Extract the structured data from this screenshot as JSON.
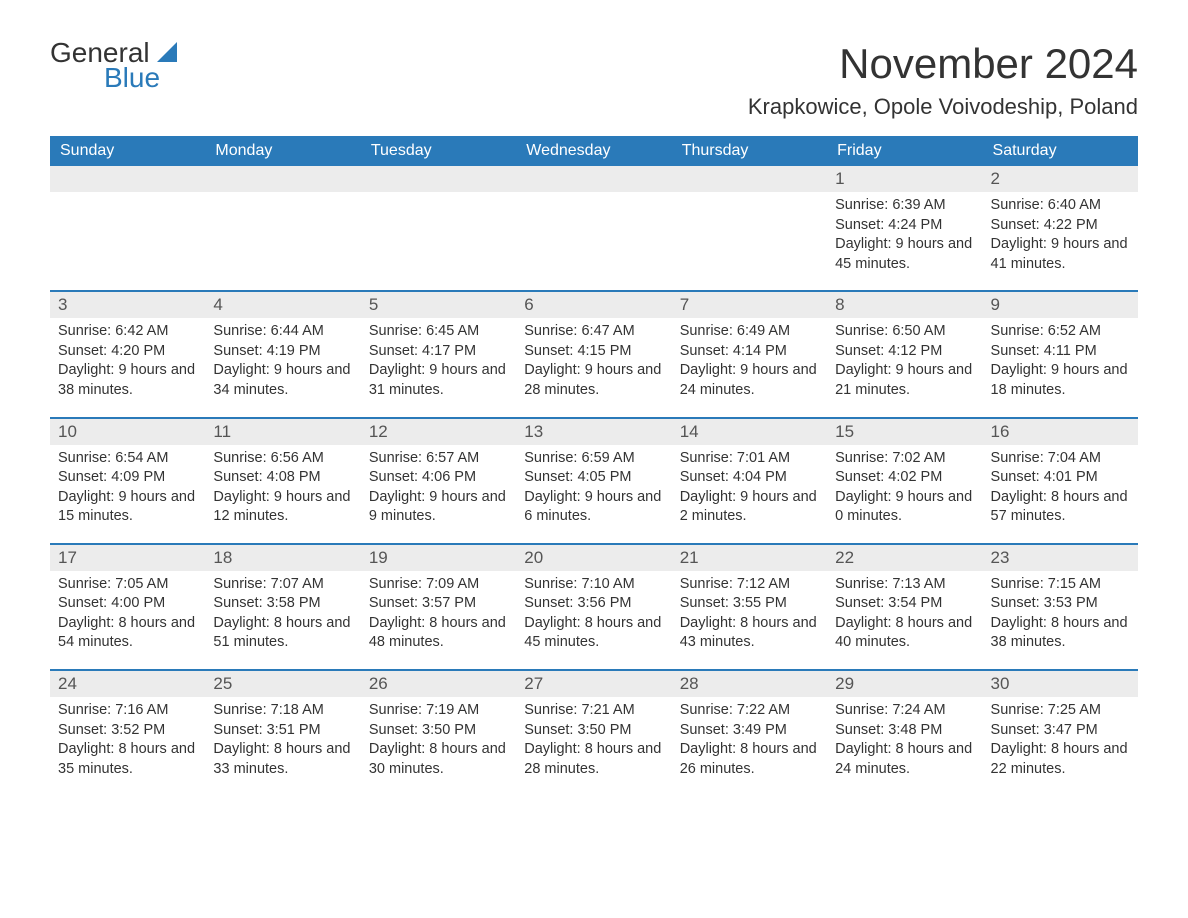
{
  "logo": {
    "line1": "General",
    "line2": "Blue"
  },
  "title": "November 2024",
  "location": "Krapkowice, Opole Voivodeship, Poland",
  "colors": {
    "header_bg": "#2a7ab9",
    "header_text": "#ffffff",
    "daynum_bg": "#ececec",
    "border": "#2a7ab9",
    "text": "#333333",
    "brand_blue": "#2a7ab9"
  },
  "daysOfWeek": [
    "Sunday",
    "Monday",
    "Tuesday",
    "Wednesday",
    "Thursday",
    "Friday",
    "Saturday"
  ],
  "weeks": [
    [
      {
        "day": null
      },
      {
        "day": null
      },
      {
        "day": null
      },
      {
        "day": null
      },
      {
        "day": null
      },
      {
        "day": 1,
        "sunrise": "6:39 AM",
        "sunset": "4:24 PM",
        "daylight": "9 hours and 45 minutes."
      },
      {
        "day": 2,
        "sunrise": "6:40 AM",
        "sunset": "4:22 PM",
        "daylight": "9 hours and 41 minutes."
      }
    ],
    [
      {
        "day": 3,
        "sunrise": "6:42 AM",
        "sunset": "4:20 PM",
        "daylight": "9 hours and 38 minutes."
      },
      {
        "day": 4,
        "sunrise": "6:44 AM",
        "sunset": "4:19 PM",
        "daylight": "9 hours and 34 minutes."
      },
      {
        "day": 5,
        "sunrise": "6:45 AM",
        "sunset": "4:17 PM",
        "daylight": "9 hours and 31 minutes."
      },
      {
        "day": 6,
        "sunrise": "6:47 AM",
        "sunset": "4:15 PM",
        "daylight": "9 hours and 28 minutes."
      },
      {
        "day": 7,
        "sunrise": "6:49 AM",
        "sunset": "4:14 PM",
        "daylight": "9 hours and 24 minutes."
      },
      {
        "day": 8,
        "sunrise": "6:50 AM",
        "sunset": "4:12 PM",
        "daylight": "9 hours and 21 minutes."
      },
      {
        "day": 9,
        "sunrise": "6:52 AM",
        "sunset": "4:11 PM",
        "daylight": "9 hours and 18 minutes."
      }
    ],
    [
      {
        "day": 10,
        "sunrise": "6:54 AM",
        "sunset": "4:09 PM",
        "daylight": "9 hours and 15 minutes."
      },
      {
        "day": 11,
        "sunrise": "6:56 AM",
        "sunset": "4:08 PM",
        "daylight": "9 hours and 12 minutes."
      },
      {
        "day": 12,
        "sunrise": "6:57 AM",
        "sunset": "4:06 PM",
        "daylight": "9 hours and 9 minutes."
      },
      {
        "day": 13,
        "sunrise": "6:59 AM",
        "sunset": "4:05 PM",
        "daylight": "9 hours and 6 minutes."
      },
      {
        "day": 14,
        "sunrise": "7:01 AM",
        "sunset": "4:04 PM",
        "daylight": "9 hours and 2 minutes."
      },
      {
        "day": 15,
        "sunrise": "7:02 AM",
        "sunset": "4:02 PM",
        "daylight": "9 hours and 0 minutes."
      },
      {
        "day": 16,
        "sunrise": "7:04 AM",
        "sunset": "4:01 PM",
        "daylight": "8 hours and 57 minutes."
      }
    ],
    [
      {
        "day": 17,
        "sunrise": "7:05 AM",
        "sunset": "4:00 PM",
        "daylight": "8 hours and 54 minutes."
      },
      {
        "day": 18,
        "sunrise": "7:07 AM",
        "sunset": "3:58 PM",
        "daylight": "8 hours and 51 minutes."
      },
      {
        "day": 19,
        "sunrise": "7:09 AM",
        "sunset": "3:57 PM",
        "daylight": "8 hours and 48 minutes."
      },
      {
        "day": 20,
        "sunrise": "7:10 AM",
        "sunset": "3:56 PM",
        "daylight": "8 hours and 45 minutes."
      },
      {
        "day": 21,
        "sunrise": "7:12 AM",
        "sunset": "3:55 PM",
        "daylight": "8 hours and 43 minutes."
      },
      {
        "day": 22,
        "sunrise": "7:13 AM",
        "sunset": "3:54 PM",
        "daylight": "8 hours and 40 minutes."
      },
      {
        "day": 23,
        "sunrise": "7:15 AM",
        "sunset": "3:53 PM",
        "daylight": "8 hours and 38 minutes."
      }
    ],
    [
      {
        "day": 24,
        "sunrise": "7:16 AM",
        "sunset": "3:52 PM",
        "daylight": "8 hours and 35 minutes."
      },
      {
        "day": 25,
        "sunrise": "7:18 AM",
        "sunset": "3:51 PM",
        "daylight": "8 hours and 33 minutes."
      },
      {
        "day": 26,
        "sunrise": "7:19 AM",
        "sunset": "3:50 PM",
        "daylight": "8 hours and 30 minutes."
      },
      {
        "day": 27,
        "sunrise": "7:21 AM",
        "sunset": "3:50 PM",
        "daylight": "8 hours and 28 minutes."
      },
      {
        "day": 28,
        "sunrise": "7:22 AM",
        "sunset": "3:49 PM",
        "daylight": "8 hours and 26 minutes."
      },
      {
        "day": 29,
        "sunrise": "7:24 AM",
        "sunset": "3:48 PM",
        "daylight": "8 hours and 24 minutes."
      },
      {
        "day": 30,
        "sunrise": "7:25 AM",
        "sunset": "3:47 PM",
        "daylight": "8 hours and 22 minutes."
      }
    ]
  ],
  "labels": {
    "sunrise": "Sunrise:",
    "sunset": "Sunset:",
    "daylight": "Daylight:"
  }
}
